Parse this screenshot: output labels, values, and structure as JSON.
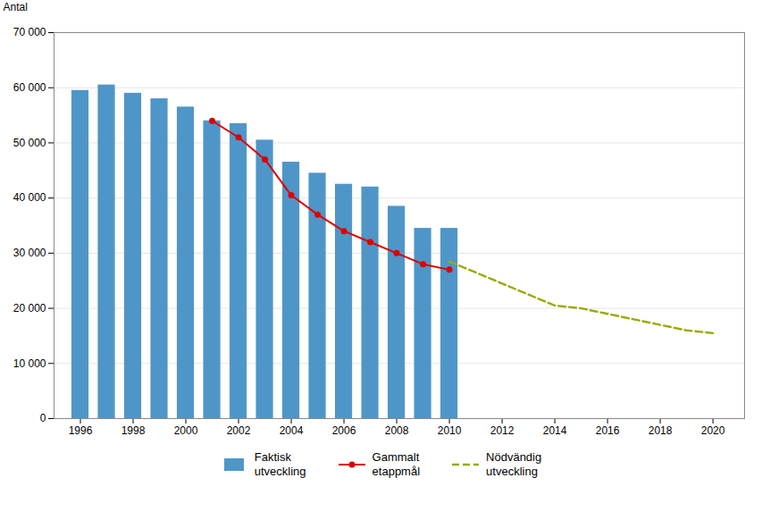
{
  "chart_data": {
    "type": "bar",
    "ylabel": "Antal",
    "xlim": [
      1995.0,
      2021.2
    ],
    "xticks": [
      1996,
      1998,
      2000,
      2002,
      2004,
      2006,
      2008,
      2010,
      2012,
      2014,
      2016,
      2018,
      2020
    ],
    "ylim": [
      0,
      70000
    ],
    "yticks": [
      0,
      {
        "value": 10000,
        "label": "10 000"
      },
      {
        "value": 20000,
        "label": "20 000"
      },
      {
        "value": 30000,
        "label": "30 000"
      },
      {
        "value": 40000,
        "label": "40 000"
      },
      {
        "value": 50000,
        "label": "50 000"
      },
      {
        "value": 60000,
        "label": "60 000"
      },
      {
        "value": 70000,
        "label": "70 000"
      }
    ],
    "grid": true,
    "legend": "bottom",
    "series": [
      {
        "name": "Faktisk\nutveckling",
        "type": "bar",
        "color": "#4f96c8",
        "x": [
          1996,
          1997,
          1998,
          1999,
          2000,
          2001,
          2002,
          2003,
          2004,
          2005,
          2006,
          2007,
          2008,
          2009,
          2010
        ],
        "values": [
          59500,
          60500,
          59000,
          58000,
          56500,
          54000,
          53500,
          50500,
          46500,
          44500,
          42500,
          42000,
          38500,
          34500,
          34500
        ]
      },
      {
        "name": "Gammalt\netappmål",
        "type": "line",
        "color": "#dd0000",
        "marker": "circle",
        "line_style": "solid",
        "x": [
          2001,
          2002,
          2003,
          2004,
          2005,
          2006,
          2007,
          2008,
          2009,
          2010
        ],
        "values": [
          54000,
          51000,
          47000,
          40500,
          37000,
          34000,
          32000,
          30000,
          28000,
          27000
        ]
      },
      {
        "name": "Nödvändig\nutveckling",
        "type": "line",
        "color": "#99aa00",
        "line_style": "dashed",
        "x": [
          2010,
          2011,
          2012,
          2013,
          2014,
          2015,
          2016,
          2017,
          2018,
          2019,
          2020
        ],
        "values": [
          28500,
          26500,
          24500,
          22500,
          20500,
          20000,
          19000,
          18000,
          17000,
          16000,
          15500
        ]
      }
    ]
  }
}
